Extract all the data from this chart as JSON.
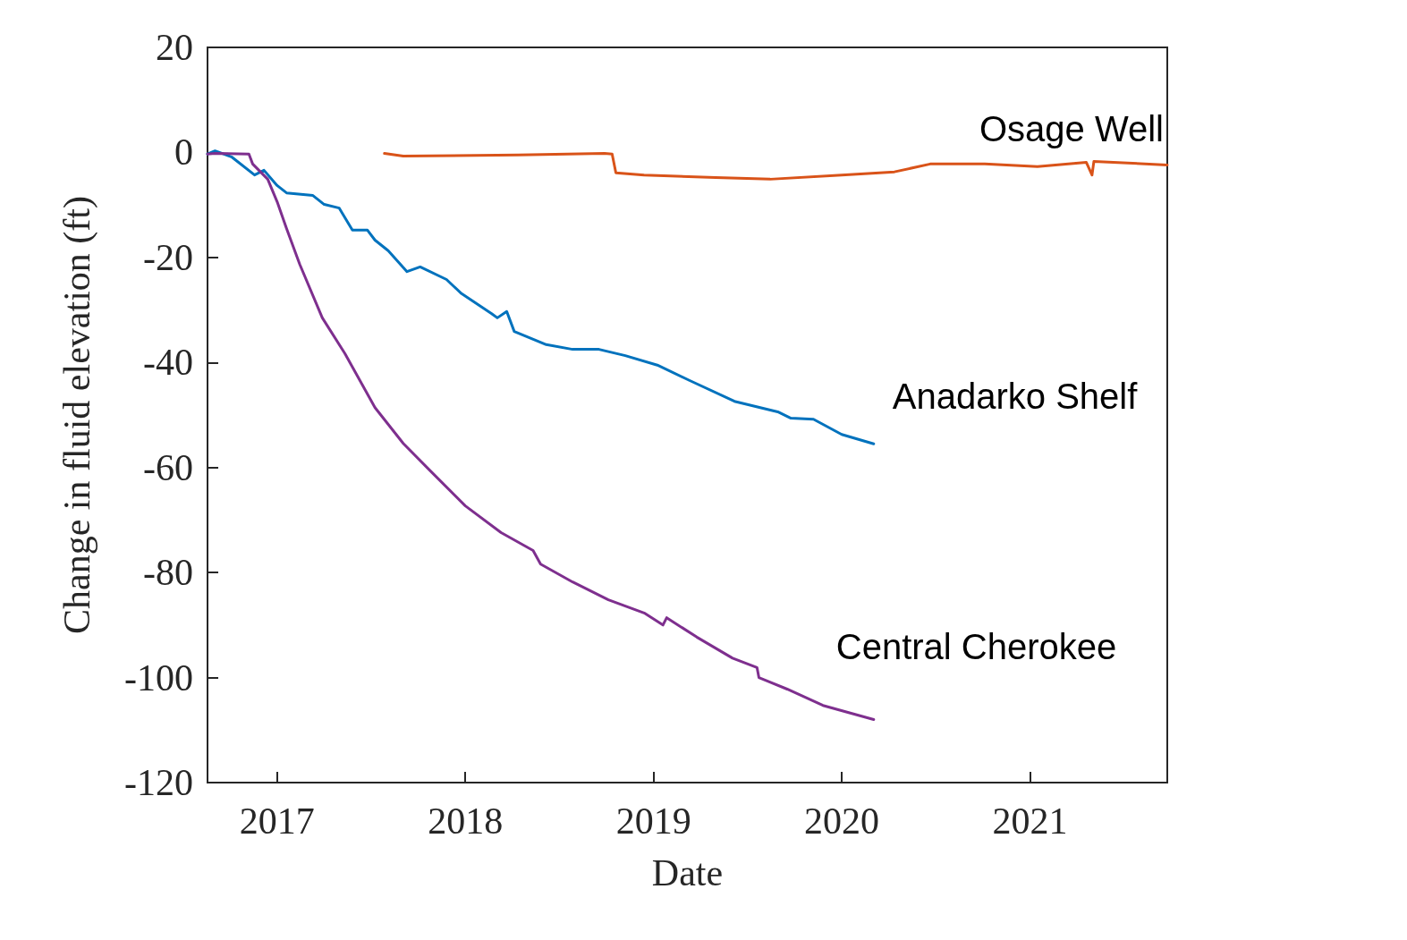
{
  "chart_data": {
    "type": "line",
    "xlabel": "Date",
    "ylabel": "Change in fluid elevation (ft)",
    "xlim": [
      2016.63,
      2021.73
    ],
    "ylim": [
      -120,
      20
    ],
    "xticks": [
      2017,
      2018,
      2019,
      2020,
      2021
    ],
    "yticks": [
      -120,
      -100,
      -80,
      -60,
      -40,
      -20,
      0,
      20
    ],
    "series": [
      {
        "name": "Osage Well",
        "color": "#d95319",
        "x": [
          2017.57,
          2017.67,
          2018.28,
          2018.74,
          2018.78,
          2018.8,
          2018.95,
          2019.33,
          2019.62,
          2020.0,
          2020.28,
          2020.47,
          2020.76,
          2021.04,
          2021.3,
          2021.33,
          2021.34,
          2021.52,
          2021.73
        ],
        "values": [
          -0.2,
          -0.7,
          -0.5,
          -0.2,
          -0.3,
          -3.9,
          -4.3,
          -4.8,
          -5.1,
          -4.3,
          -3.7,
          -2.2,
          -2.2,
          -2.7,
          -1.9,
          -4.3,
          -1.7,
          -2.0,
          -2.4
        ]
      },
      {
        "name": "Anadarko Shelf",
        "color": "#0072bd",
        "x": [
          2016.63,
          2016.67,
          2016.76,
          2016.88,
          2016.93,
          2017.0,
          2017.05,
          2017.19,
          2017.25,
          2017.33,
          2017.4,
          2017.48,
          2017.52,
          2017.59,
          2017.69,
          2017.76,
          2017.9,
          2017.98,
          2018.14,
          2018.17,
          2018.22,
          2018.26,
          2018.43,
          2018.57,
          2018.71,
          2018.85,
          2019.02,
          2019.19,
          2019.43,
          2019.66,
          2019.73,
          2019.85,
          2020.0,
          2020.17
        ],
        "values": [
          -0.3,
          0.3,
          -0.9,
          -4.3,
          -3.4,
          -6.3,
          -7.7,
          -8.2,
          -9.9,
          -10.6,
          -14.8,
          -14.8,
          -16.7,
          -18.7,
          -22.7,
          -21.8,
          -24.2,
          -26.9,
          -30.7,
          -31.5,
          -30.3,
          -34.1,
          -36.6,
          -37.5,
          -37.5,
          -38.7,
          -40.5,
          -43.4,
          -47.4,
          -49.4,
          -50.6,
          -50.8,
          -53.7,
          -55.5
        ]
      },
      {
        "name": "Central Cherokee",
        "color": "#7e2f8e",
        "x": [
          2016.63,
          2016.67,
          2016.85,
          2016.87,
          2016.95,
          2017.0,
          2017.05,
          2017.12,
          2017.24,
          2017.36,
          2017.52,
          2017.67,
          2017.81,
          2018.0,
          2018.19,
          2018.36,
          2018.4,
          2018.57,
          2018.76,
          2018.95,
          2019.05,
          2019.07,
          2019.23,
          2019.42,
          2019.55,
          2019.56,
          2019.71,
          2019.9,
          2020.17
        ],
        "values": [
          -0.3,
          -0.2,
          -0.3,
          -2.2,
          -5.1,
          -9.4,
          -14.5,
          -21.3,
          -31.5,
          -38.3,
          -48.6,
          -55.4,
          -60.5,
          -67.3,
          -72.4,
          -75.8,
          -78.4,
          -81.8,
          -85.2,
          -87.7,
          -90.0,
          -88.6,
          -92.3,
          -96.3,
          -98.1,
          -100.0,
          -102.2,
          -105.3,
          -108.0
        ]
      }
    ]
  }
}
